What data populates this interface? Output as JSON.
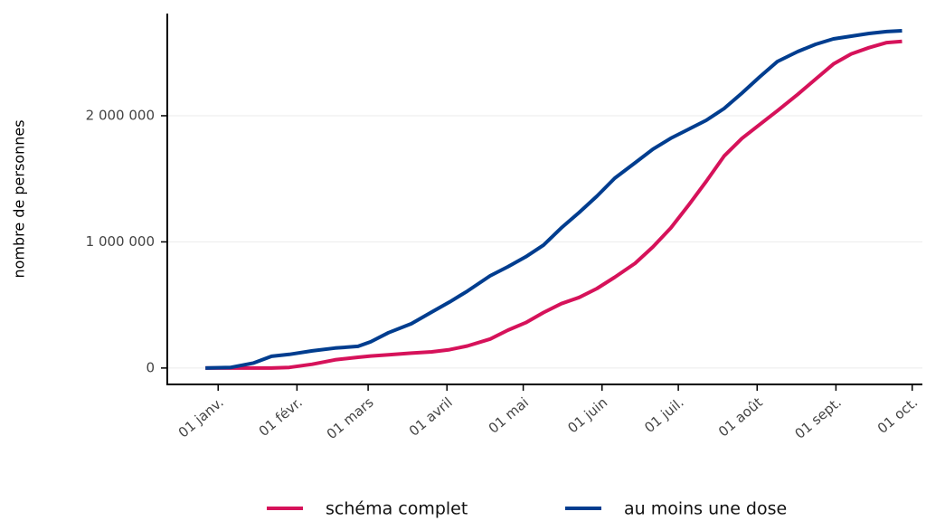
{
  "chart_data": {
    "type": "line",
    "ylabel": "nombre de personnes",
    "x": [
      -5,
      5,
      14,
      21,
      28,
      37,
      46,
      55,
      60,
      67,
      76,
      84,
      91,
      98,
      107,
      114,
      121,
      128,
      135,
      142,
      149,
      156,
      164,
      171,
      178,
      185,
      192,
      199,
      206,
      213,
      220,
      228,
      235,
      242,
      249,
      256,
      263,
      269
    ],
    "series": [
      {
        "name": "schéma complet",
        "color": "#d6125a",
        "values": [
          0,
          0,
          0,
          0,
          5000,
          30000,
          65000,
          85000,
          95000,
          105000,
          118000,
          128000,
          145000,
          175000,
          230000,
          300000,
          360000,
          440000,
          510000,
          560000,
          630000,
          720000,
          830000,
          960000,
          1110000,
          1290000,
          1480000,
          1680000,
          1820000,
          1930000,
          2040000,
          2170000,
          2290000,
          2410000,
          2490000,
          2540000,
          2580000,
          2590000
        ]
      },
      {
        "name": "au moins une dose",
        "color": "#003d8f",
        "values": [
          0,
          5000,
          40000,
          93000,
          108000,
          136000,
          158000,
          172000,
          208000,
          280000,
          351000,
          444000,
          523000,
          609000,
          731000,
          803000,
          882000,
          975000,
          1111000,
          1233000,
          1362000,
          1505000,
          1627000,
          1735000,
          1821000,
          1892000,
          1964000,
          2057000,
          2179000,
          2308000,
          2430000,
          2509000,
          2566000,
          2609000,
          2631000,
          2652000,
          2667000,
          2674000
        ]
      }
    ],
    "xlim": [
      -20,
      277
    ],
    "xticks": [
      {
        "value": 0,
        "label": "01 janv."
      },
      {
        "value": 31,
        "label": "01 févr."
      },
      {
        "value": 59,
        "label": "01 mars"
      },
      {
        "value": 90,
        "label": "01 avril"
      },
      {
        "value": 120,
        "label": "01 mai"
      },
      {
        "value": 151,
        "label": "01 juin"
      },
      {
        "value": 181,
        "label": "01 juil."
      },
      {
        "value": 212,
        "label": "01 août"
      },
      {
        "value": 243,
        "label": "01 sept."
      },
      {
        "value": 273,
        "label": "01 oct."
      }
    ],
    "ylim": [
      -130000,
      2810000
    ],
    "yticks": [
      0,
      {
        "value": 1000000,
        "label": "1 000 000"
      },
      {
        "value": 2000000,
        "label": "2 000 000"
      }
    ],
    "grid": true,
    "legend": "bottom"
  }
}
